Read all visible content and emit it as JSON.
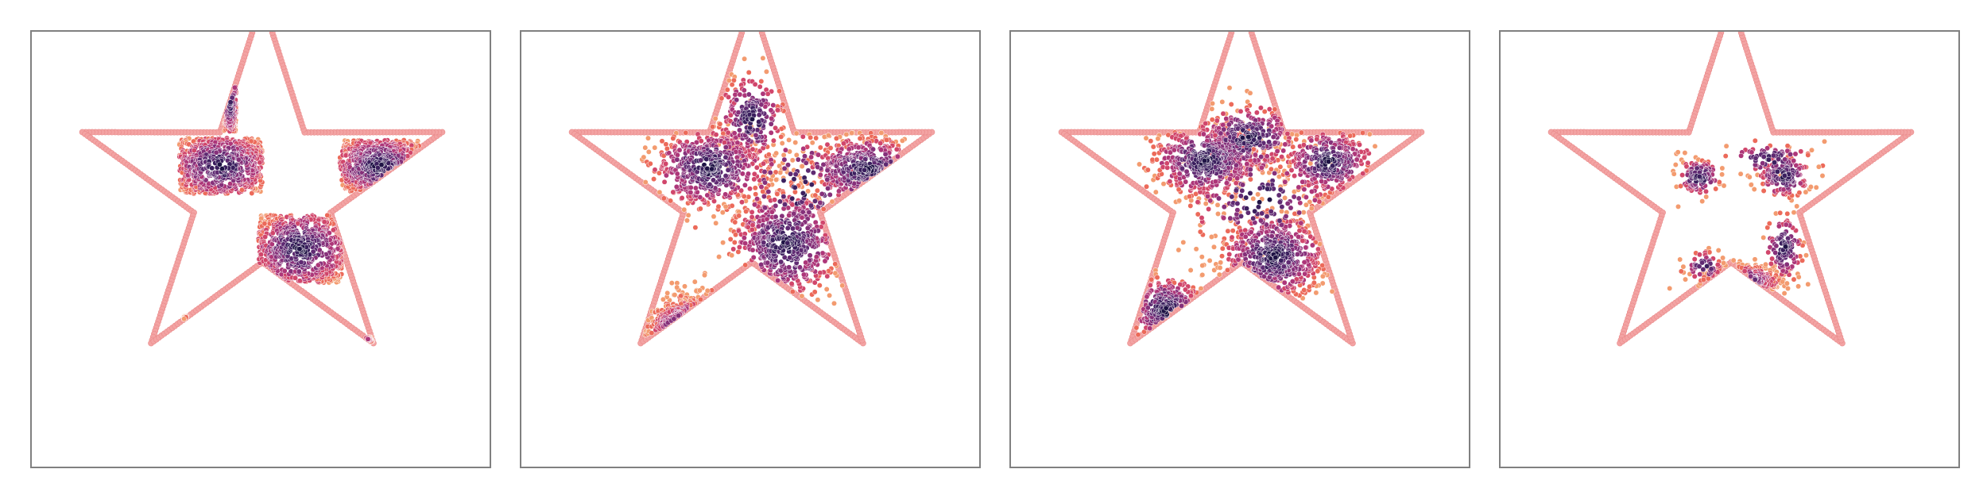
{
  "colors": {
    "boundary": "#f3a3a3",
    "boundary_edge": "#e98a8a",
    "frame": "#808080",
    "palette": [
      "#1f1345",
      "#3b1f5e",
      "#5f2a72",
      "#86307a",
      "#ad3679",
      "#d1466b",
      "#ec6a5a",
      "#f39b6f"
    ]
  },
  "chart_data": [
    {
      "type": "scatter",
      "xlim": [
        -1.2,
        1.2
      ],
      "ylim": [
        -1.2,
        1.2
      ],
      "grid": false,
      "boundary": {
        "shape": "star",
        "outer_radius": 1.0,
        "inner_radius": 0.38,
        "points": 5
      },
      "clusters": [
        {
          "cx": -0.17,
          "cy": 0.5,
          "sx": 0.03,
          "sy": 0.18,
          "n": 140,
          "shape": "rect"
        },
        {
          "cx": -0.22,
          "cy": 0.13,
          "sx": 0.21,
          "sy": 0.14,
          "n": 620,
          "shape": "rect"
        },
        {
          "cx": 0.62,
          "cy": 0.13,
          "sx": 0.2,
          "sy": 0.13,
          "n": 440,
          "shape": "rect"
        },
        {
          "cx": 0.2,
          "cy": -0.31,
          "sx": 0.21,
          "sy": 0.17,
          "n": 640,
          "shape": "rect"
        },
        {
          "cx": -0.28,
          "cy": -0.77,
          "sx": 0.13,
          "sy": 0.1,
          "n": 180,
          "shape": "rect"
        },
        {
          "cx": 0.55,
          "cy": -0.86,
          "sx": 0.03,
          "sy": 0.08,
          "n": 40,
          "shape": "rect"
        }
      ]
    },
    {
      "type": "scatter",
      "xlim": [
        -1.2,
        1.2
      ],
      "ylim": [
        -1.2,
        1.2
      ],
      "grid": false,
      "boundary": {
        "shape": "star",
        "outer_radius": 1.0,
        "inner_radius": 0.38,
        "points": 5
      },
      "clusters": [
        {
          "cx": 0.0,
          "cy": 0.38,
          "sx": 0.09,
          "sy": 0.12,
          "n": 220,
          "shape": "gauss"
        },
        {
          "cx": -0.22,
          "cy": 0.12,
          "sx": 0.16,
          "sy": 0.11,
          "n": 560,
          "shape": "gauss"
        },
        {
          "cx": 0.6,
          "cy": 0.11,
          "sx": 0.16,
          "sy": 0.09,
          "n": 380,
          "shape": "gauss"
        },
        {
          "cx": 0.18,
          "cy": -0.28,
          "sx": 0.15,
          "sy": 0.15,
          "n": 560,
          "shape": "gauss"
        },
        {
          "cx": -0.34,
          "cy": -0.74,
          "sx": 0.1,
          "sy": 0.08,
          "n": 190,
          "shape": "gauss"
        },
        {
          "cx": 0.25,
          "cy": 0.02,
          "sx": 0.18,
          "sy": 0.15,
          "n": 120,
          "shape": "gauss"
        }
      ]
    },
    {
      "type": "scatter",
      "xlim": [
        -1.2,
        1.2
      ],
      "ylim": [
        -1.2,
        1.2
      ],
      "grid": false,
      "boundary": {
        "shape": "star",
        "outer_radius": 1.0,
        "inner_radius": 0.38,
        "points": 5
      },
      "clusters": [
        {
          "cx": -0.19,
          "cy": 0.16,
          "sx": 0.15,
          "sy": 0.1,
          "n": 520,
          "shape": "gauss"
        },
        {
          "cx": 0.04,
          "cy": 0.28,
          "sx": 0.14,
          "sy": 0.09,
          "n": 300,
          "shape": "gauss"
        },
        {
          "cx": 0.46,
          "cy": 0.15,
          "sx": 0.12,
          "sy": 0.09,
          "n": 340,
          "shape": "gauss"
        },
        {
          "cx": 0.17,
          "cy": -0.35,
          "sx": 0.14,
          "sy": 0.12,
          "n": 520,
          "shape": "gauss"
        },
        {
          "cx": -0.4,
          "cy": -0.63,
          "sx": 0.1,
          "sy": 0.09,
          "n": 190,
          "shape": "gauss"
        },
        {
          "cx": 0.1,
          "cy": -0.05,
          "sx": 0.2,
          "sy": 0.14,
          "n": 160,
          "shape": "gauss"
        }
      ]
    },
    {
      "type": "scatter",
      "xlim": [
        -1.2,
        1.2
      ],
      "ylim": [
        -1.2,
        1.2
      ],
      "grid": false,
      "boundary": {
        "shape": "star",
        "outer_radius": 1.0,
        "inner_radius": 0.38,
        "points": 5
      },
      "clusters": [
        {
          "cx": -0.17,
          "cy": 0.07,
          "sx": 0.06,
          "sy": 0.05,
          "n": 120,
          "shape": "gauss"
        },
        {
          "cx": 0.28,
          "cy": 0.08,
          "sx": 0.07,
          "sy": 0.06,
          "n": 150,
          "shape": "gauss"
        },
        {
          "cx": 0.05,
          "cy": -0.48,
          "sx": 0.1,
          "sy": 0.04,
          "n": 150,
          "shape": "gauss"
        },
        {
          "cx": 0.28,
          "cy": -0.3,
          "sx": 0.05,
          "sy": 0.09,
          "n": 120,
          "shape": "gauss"
        },
        {
          "cx": 0.2,
          "cy": 0.17,
          "sx": 0.12,
          "sy": 0.04,
          "n": 80,
          "shape": "gauss"
        },
        {
          "cx": -0.14,
          "cy": -0.4,
          "sx": 0.05,
          "sy": 0.04,
          "n": 50,
          "shape": "gauss"
        }
      ]
    }
  ]
}
